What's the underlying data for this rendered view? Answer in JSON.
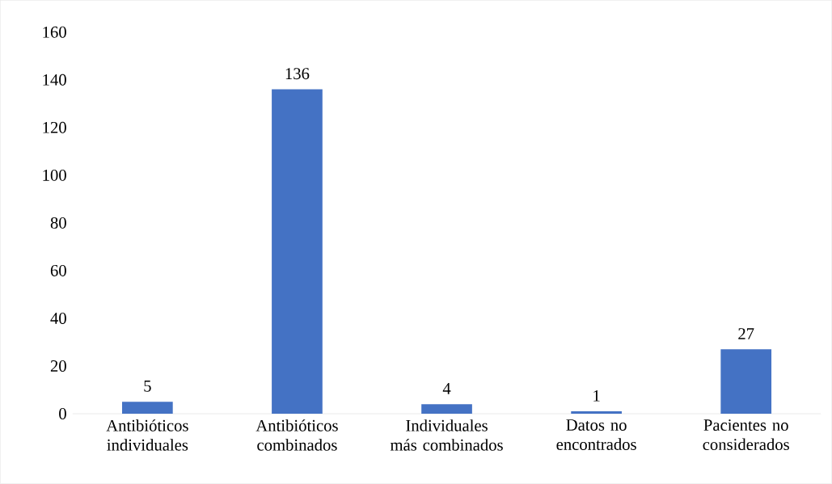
{
  "chart_data": {
    "type": "bar",
    "categories": [
      "Antibióticos individuales",
      "Antibióticos combinados",
      "Individuales más combinados",
      "Datos no encontrados",
      "Pacientes no considerados"
    ],
    "values": [
      5,
      136,
      4,
      1,
      27
    ],
    "color": "#4472c4",
    "ylim": [
      0,
      160
    ],
    "yticks": [
      0,
      20,
      40,
      60,
      80,
      100,
      120,
      140,
      160
    ],
    "data_labels": true,
    "grid": false
  }
}
